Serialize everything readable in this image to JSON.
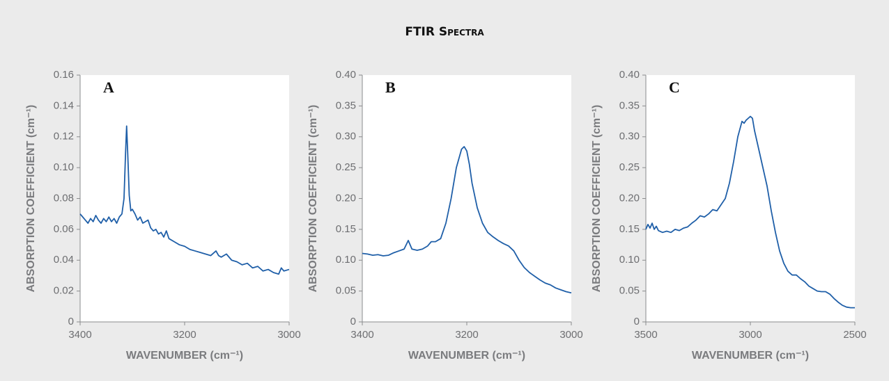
{
  "title": "FTIR Spectra",
  "chart_data": [
    {
      "type": "line",
      "label": "A",
      "xlabel": "WAVENUMBER (cm⁻¹)",
      "ylabel": "ABSORPTION COEFFICIENT (cm⁻¹)",
      "color": "#1f5fa8",
      "xlim": [
        3400,
        3000
      ],
      "xticks": [
        3400,
        3200,
        3000
      ],
      "ylim": [
        0,
        0.16
      ],
      "yticks": [
        0,
        0.02,
        0.04,
        0.06,
        0.08,
        {
          "value": 0.1,
          "label": "0.10"
        },
        0.12,
        0.14,
        0.16
      ],
      "x": [
        3400,
        3395,
        3390,
        3385,
        3380,
        3375,
        3370,
        3365,
        3360,
        3355,
        3350,
        3345,
        3340,
        3335,
        3330,
        3325,
        3320,
        3316,
        3313,
        3311,
        3309,
        3306,
        3303,
        3300,
        3295,
        3290,
        3285,
        3280,
        3275,
        3270,
        3265,
        3260,
        3255,
        3250,
        3245,
        3240,
        3235,
        3230,
        3220,
        3210,
        3200,
        3190,
        3180,
        3170,
        3160,
        3150,
        3140,
        3135,
        3130,
        3120,
        3110,
        3100,
        3090,
        3080,
        3070,
        3060,
        3050,
        3040,
        3030,
        3020,
        3015,
        3010,
        3000
      ],
      "values": [
        0.07,
        0.068,
        0.066,
        0.064,
        0.067,
        0.065,
        0.069,
        0.066,
        0.064,
        0.067,
        0.065,
        0.068,
        0.065,
        0.067,
        0.064,
        0.068,
        0.07,
        0.08,
        0.11,
        0.127,
        0.11,
        0.082,
        0.072,
        0.073,
        0.07,
        0.066,
        0.068,
        0.064,
        0.065,
        0.066,
        0.061,
        0.059,
        0.06,
        0.057,
        0.058,
        0.055,
        0.059,
        0.054,
        0.052,
        0.05,
        0.049,
        0.047,
        0.046,
        0.045,
        0.044,
        0.043,
        0.046,
        0.043,
        0.042,
        0.044,
        0.04,
        0.039,
        0.037,
        0.038,
        0.035,
        0.036,
        0.033,
        0.034,
        0.032,
        0.031,
        0.035,
        0.033,
        0.034
      ]
    },
    {
      "type": "line",
      "label": "B",
      "xlabel": "WAVENUMBER (cm⁻¹)",
      "ylabel": "ABSORPTION COEFFICIENT (cm⁻¹)",
      "color": "#1f5fa8",
      "xlim": [
        3400,
        3000
      ],
      "xticks": [
        3400,
        3200,
        3000
      ],
      "ylim": [
        0,
        0.4
      ],
      "yticks": [
        0,
        0.05,
        {
          "value": 0.1,
          "label": "0.10"
        },
        0.15,
        {
          "value": 0.2,
          "label": "0.20"
        },
        0.25,
        {
          "value": 0.3,
          "label": "0.30"
        },
        0.35,
        {
          "value": 0.4,
          "label": "0.40"
        }
      ],
      "x": [
        3400,
        3390,
        3380,
        3370,
        3360,
        3350,
        3340,
        3330,
        3320,
        3312,
        3305,
        3295,
        3285,
        3275,
        3268,
        3260,
        3250,
        3240,
        3230,
        3220,
        3210,
        3205,
        3200,
        3195,
        3190,
        3180,
        3170,
        3160,
        3150,
        3140,
        3130,
        3120,
        3110,
        3100,
        3090,
        3080,
        3070,
        3060,
        3050,
        3040,
        3030,
        3020,
        3010,
        3000
      ],
      "values": [
        0.111,
        0.11,
        0.108,
        0.109,
        0.107,
        0.108,
        0.112,
        0.115,
        0.118,
        0.132,
        0.118,
        0.116,
        0.118,
        0.123,
        0.13,
        0.13,
        0.135,
        0.16,
        0.2,
        0.25,
        0.28,
        0.284,
        0.277,
        0.255,
        0.225,
        0.185,
        0.16,
        0.145,
        0.138,
        0.132,
        0.127,
        0.123,
        0.115,
        0.1,
        0.088,
        0.08,
        0.074,
        0.068,
        0.063,
        0.06,
        0.055,
        0.052,
        0.049,
        0.047
      ]
    },
    {
      "type": "line",
      "label": "C",
      "xlabel": "WAVENUMBER (cm⁻¹)",
      "ylabel": "ABSORPTION COEFFICIENT (cm⁻¹)",
      "color": "#1f5fa8",
      "xlim": [
        3500,
        2500
      ],
      "xticks": [
        3500,
        3000,
        2500
      ],
      "ylim": [
        0,
        0.4
      ],
      "yticks": [
        0,
        0.05,
        {
          "value": 0.1,
          "label": "0.10"
        },
        0.15,
        {
          "value": 0.2,
          "label": "0.20"
        },
        0.25,
        {
          "value": 0.3,
          "label": "0.30"
        },
        0.35,
        {
          "value": 0.4,
          "label": "0.40"
        }
      ],
      "x": [
        3500,
        3490,
        3480,
        3470,
        3460,
        3450,
        3440,
        3420,
        3400,
        3380,
        3360,
        3340,
        3320,
        3300,
        3280,
        3260,
        3240,
        3220,
        3200,
        3180,
        3160,
        3140,
        3120,
        3100,
        3080,
        3060,
        3040,
        3030,
        3020,
        3010,
        3000,
        2990,
        2980,
        2960,
        2940,
        2920,
        2900,
        2880,
        2860,
        2840,
        2820,
        2800,
        2780,
        2760,
        2740,
        2720,
        2700,
        2680,
        2660,
        2640,
        2620,
        2600,
        2580,
        2560,
        2540,
        2520,
        2500
      ],
      "values": [
        0.15,
        0.158,
        0.152,
        0.16,
        0.15,
        0.155,
        0.148,
        0.145,
        0.147,
        0.145,
        0.15,
        0.148,
        0.152,
        0.154,
        0.16,
        0.165,
        0.172,
        0.17,
        0.175,
        0.182,
        0.18,
        0.19,
        0.2,
        0.225,
        0.26,
        0.3,
        0.325,
        0.322,
        0.327,
        0.33,
        0.333,
        0.33,
        0.31,
        0.28,
        0.25,
        0.22,
        0.18,
        0.145,
        0.115,
        0.095,
        0.082,
        0.076,
        0.076,
        0.07,
        0.065,
        0.058,
        0.054,
        0.05,
        0.049,
        0.049,
        0.045,
        0.038,
        0.032,
        0.027,
        0.024,
        0.023,
        0.023
      ]
    }
  ]
}
